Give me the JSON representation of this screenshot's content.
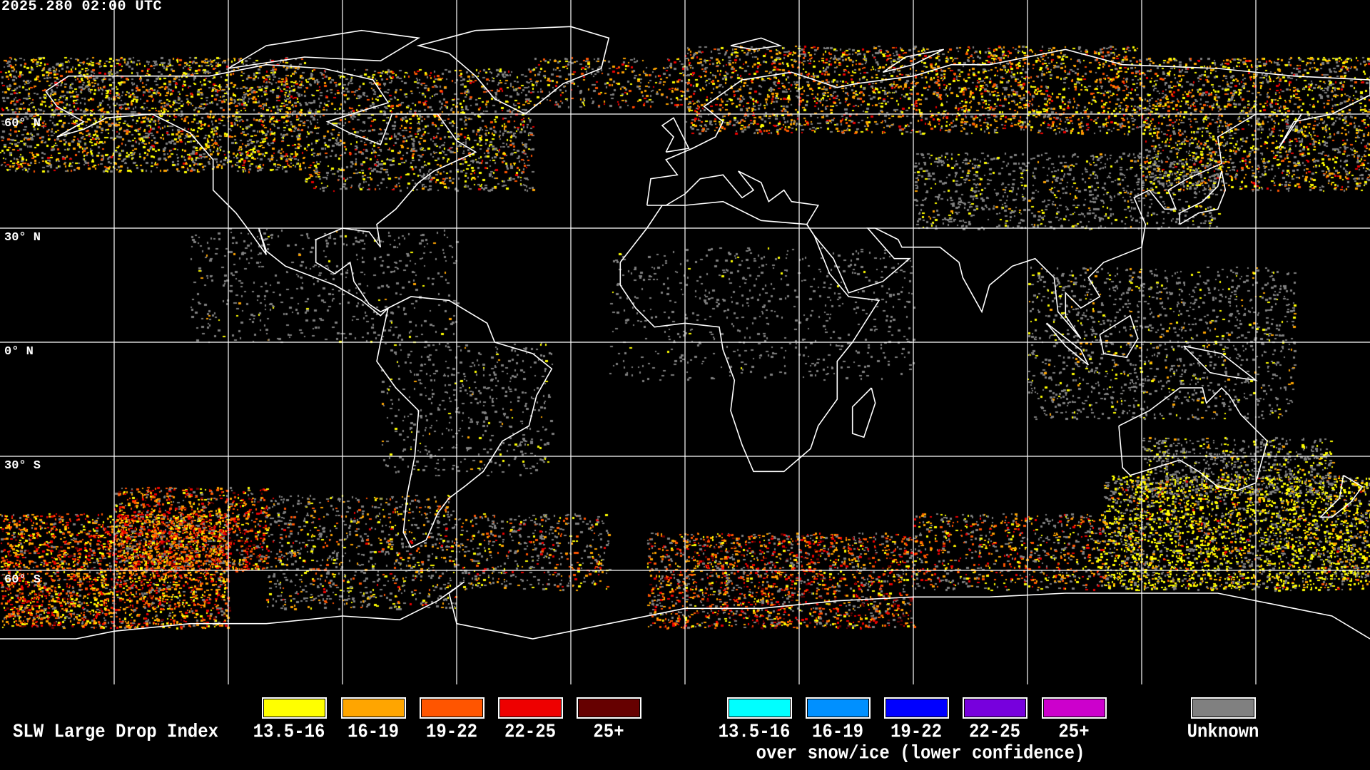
{
  "timestamp": "2025.280 02:00 UTC",
  "map": {
    "projection": "equirectangular",
    "grid_longitudes": [
      -150,
      -120,
      -90,
      -60,
      -30,
      0,
      30,
      60,
      90,
      120,
      150
    ],
    "grid_latitudes": [
      60,
      30,
      0,
      -30,
      -60
    ],
    "lat_labels": [
      "60° N",
      "30° N",
      "0° N",
      "30° S",
      "60° S"
    ],
    "background_color": "#000000",
    "coastline_color": "#ffffff",
    "grid_color": "#ffffff"
  },
  "legend": {
    "title": "SLW Large Drop Index",
    "main_bins": [
      {
        "label": "13.5-16",
        "color": "#ffff00"
      },
      {
        "label": "16-19",
        "color": "#ffa500"
      },
      {
        "label": "19-22",
        "color": "#ff5500"
      },
      {
        "label": "22-25",
        "color": "#ee0000"
      },
      {
        "label": "25+",
        "color": "#660000"
      }
    ],
    "snow_ice_bins": [
      {
        "label": "13.5-16",
        "color": "#00ffff"
      },
      {
        "label": "16-19",
        "color": "#0090ff"
      },
      {
        "label": "19-22",
        "color": "#0000ff"
      },
      {
        "label": "22-25",
        "color": "#7700dd"
      },
      {
        "label": "25+",
        "color": "#cc00cc"
      }
    ],
    "snow_ice_caption": "over snow/ice (lower confidence)",
    "unknown": {
      "label": "Unknown",
      "color": "#808080"
    }
  }
}
